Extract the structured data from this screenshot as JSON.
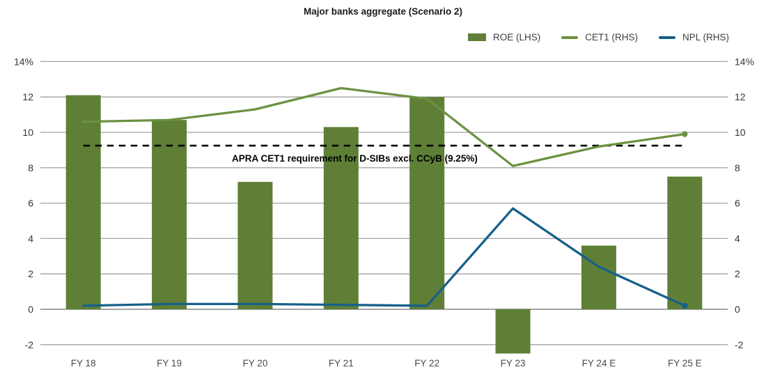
{
  "chart_data": {
    "type": "combo-bar-line",
    "title": "Major banks aggregate (Scenario 2)",
    "categories": [
      "FY 18",
      "FY 19",
      "FY 20",
      "FY 21",
      "FY 22",
      "FY 23",
      "FY 24 E",
      "FY 25 E"
    ],
    "series": [
      {
        "name": "ROE (LHS)",
        "type": "bar",
        "axis": "left",
        "color": "#5f7f37",
        "values": [
          12.1,
          10.7,
          7.2,
          10.3,
          12.0,
          -2.5,
          3.6,
          7.5
        ]
      },
      {
        "name": "CET1 (RHS)",
        "type": "line",
        "axis": "right",
        "color": "#6c9140",
        "values": [
          10.6,
          10.7,
          11.3,
          12.5,
          11.9,
          8.1,
          9.2,
          9.9
        ]
      },
      {
        "name": "NPL (RHS)",
        "type": "line",
        "axis": "right",
        "color": "#17608a",
        "values": [
          0.2,
          0.3,
          0.3,
          0.25,
          0.2,
          5.7,
          2.4,
          0.2
        ]
      }
    ],
    "reference_line": {
      "value": 9.25,
      "label": "APRA CET1 requirement for D-SIBs excl. CCyB (9.25%)",
      "style": "dashed",
      "color": "#000000"
    },
    "y_ticks": [
      {
        "value": 14,
        "label": "14%"
      },
      {
        "value": 12,
        "label": "12"
      },
      {
        "value": 10,
        "label": "10"
      },
      {
        "value": 8,
        "label": "8"
      },
      {
        "value": 6,
        "label": "6"
      },
      {
        "value": 4,
        "label": "4"
      },
      {
        "value": 2,
        "label": "2"
      },
      {
        "value": 0,
        "label": "0"
      },
      {
        "value": -2,
        "label": "-2"
      }
    ],
    "ylim": [
      -2.6,
      14
    ],
    "dual_axis": true,
    "grid": true,
    "legend_position": "top-right",
    "colors": {
      "gridline": "#a3a3a3",
      "zero_line": "#969696",
      "background": "#ffffff"
    }
  }
}
